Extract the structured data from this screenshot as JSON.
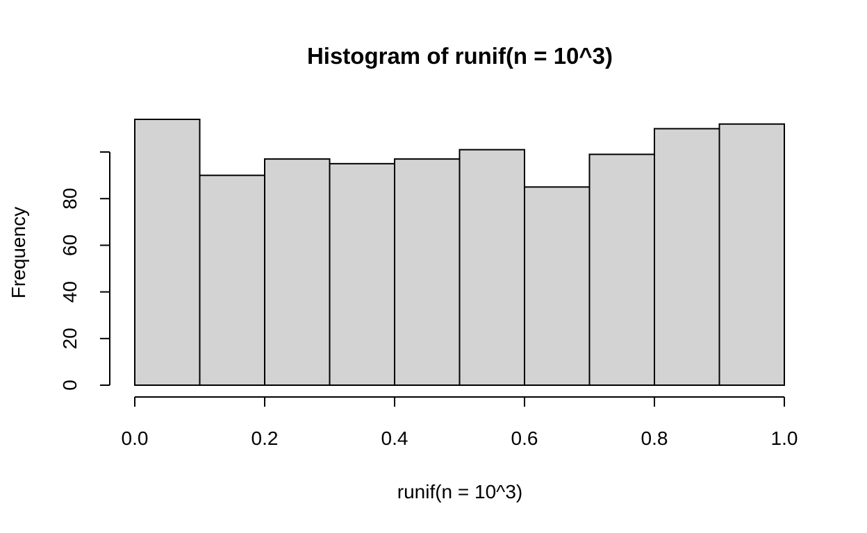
{
  "chart_data": {
    "type": "bar",
    "title": "Histogram of runif(n = 10^3)",
    "xlabel": "runif(n = 10^3)",
    "ylabel": "Frequency",
    "bins": [
      {
        "start": 0.0,
        "end": 0.1,
        "count": 114
      },
      {
        "start": 0.1,
        "end": 0.2,
        "count": 90
      },
      {
        "start": 0.2,
        "end": 0.3,
        "count": 97
      },
      {
        "start": 0.3,
        "end": 0.4,
        "count": 95
      },
      {
        "start": 0.4,
        "end": 0.5,
        "count": 97
      },
      {
        "start": 0.5,
        "end": 0.6,
        "count": 101
      },
      {
        "start": 0.6,
        "end": 0.7,
        "count": 85
      },
      {
        "start": 0.7,
        "end": 0.8,
        "count": 99
      },
      {
        "start": 0.8,
        "end": 0.9,
        "count": 110
      },
      {
        "start": 0.9,
        "end": 1.0,
        "count": 112
      }
    ],
    "xticks": [
      0.0,
      0.2,
      0.4,
      0.6,
      0.8,
      1.0
    ],
    "xtick_labels": [
      "0.0",
      "0.2",
      "0.4",
      "0.6",
      "0.8",
      "1.0"
    ],
    "yticks": [
      0,
      20,
      40,
      60,
      80,
      100
    ],
    "ytick_labels": [
      "0",
      "20",
      "40",
      "60",
      "80",
      ""
    ],
    "xlim": [
      0.0,
      1.0
    ],
    "ylim": [
      0,
      114
    ],
    "grid": false,
    "bar_color": "#d3d3d3",
    "edge_color": "#000000"
  }
}
